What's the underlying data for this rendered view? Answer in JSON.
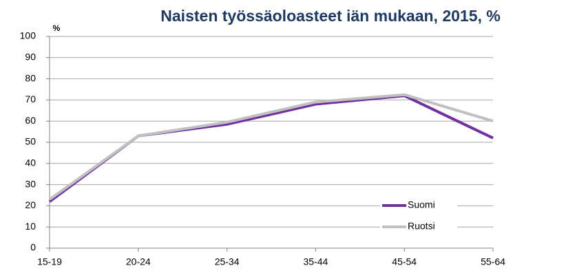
{
  "chart_data": {
    "type": "line",
    "title": "Naisten työssäoloasteet iän mukaan, 2015, %",
    "y_label": "%",
    "categories": [
      "15-19",
      "20-24",
      "25-34",
      "35-44",
      "45-54",
      "55-64"
    ],
    "series": [
      {
        "name": "Suomi",
        "color": "#7030a0",
        "values": [
          22,
          53,
          58.5,
          68,
          72,
          52
        ]
      },
      {
        "name": "Ruotsi",
        "color": "#c0c0c0",
        "values": [
          23,
          53,
          59.5,
          69,
          72.5,
          60
        ]
      }
    ],
    "ylim": [
      0,
      100
    ],
    "yticks": [
      0,
      10,
      20,
      30,
      40,
      50,
      60,
      70,
      80,
      90,
      100
    ],
    "grid": true,
    "legend": "lower right"
  }
}
